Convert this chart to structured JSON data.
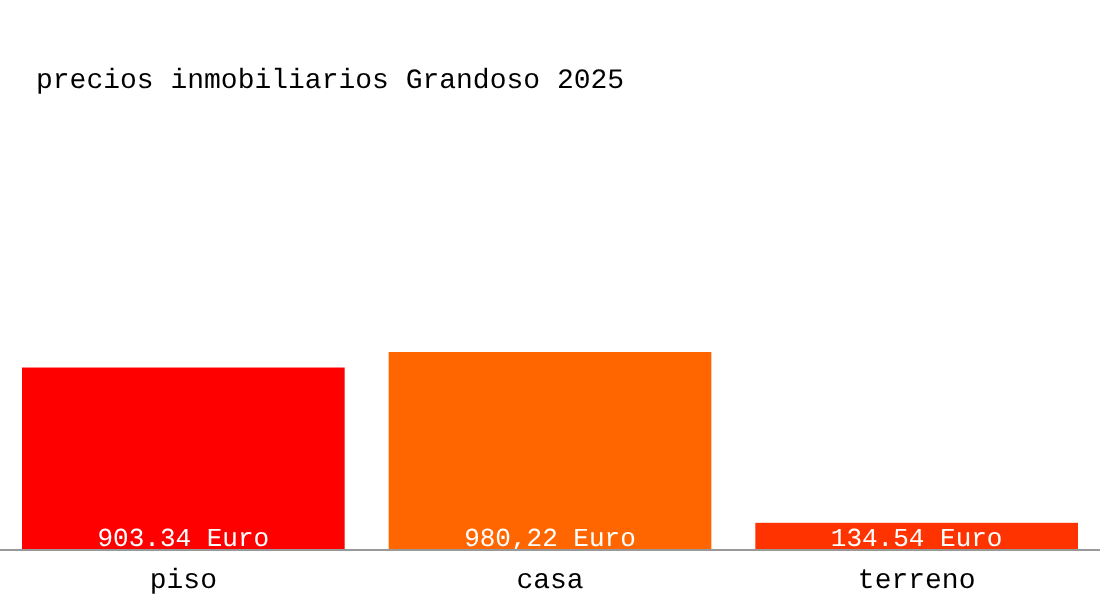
{
  "chart_data": {
    "type": "bar",
    "title": "precios inmobiliarios Grandoso 2025",
    "categories": [
      "piso",
      "casa",
      "terreno"
    ],
    "values": [
      903.34,
      980.22,
      134.54
    ],
    "colors": [
      "#ff0000",
      "#ff6600",
      "#ff3300"
    ],
    "value_labels": [
      "903.34 Euro",
      "980,22 Euro",
      "134.54 Euro"
    ]
  }
}
